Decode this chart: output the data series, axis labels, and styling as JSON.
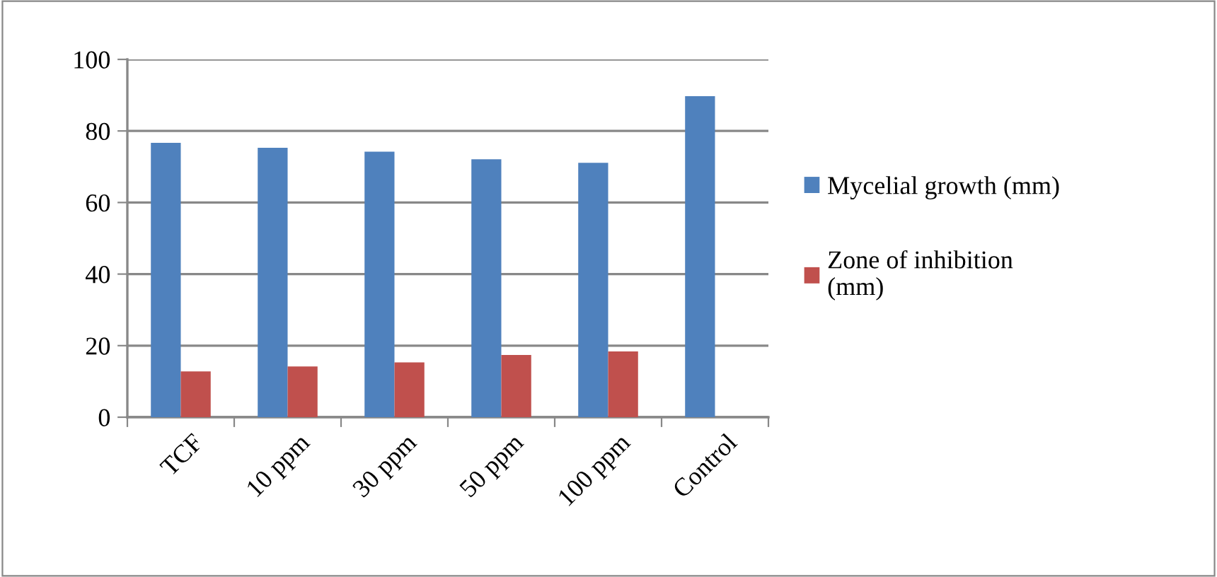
{
  "chart_data": {
    "type": "bar",
    "categories": [
      "TCF",
      "10 ppm",
      "30 ppm",
      "50 ppm",
      "100 ppm",
      "Control"
    ],
    "series": [
      {
        "name": "Mycelial growth (mm)",
        "color": "#4f81bd",
        "values": [
          76.7,
          75.3,
          74.2,
          72.1,
          71.1,
          89.7
        ]
      },
      {
        "name": "Zone of inhibition\n(mm)",
        "color": "#c0504d",
        "values": [
          12.8,
          14.2,
          15.3,
          17.4,
          18.4,
          0
        ]
      }
    ],
    "ylim": [
      0,
      100
    ],
    "yticks": [
      0,
      20,
      40,
      60,
      80,
      100
    ],
    "grid": "y",
    "legend": "right"
  }
}
